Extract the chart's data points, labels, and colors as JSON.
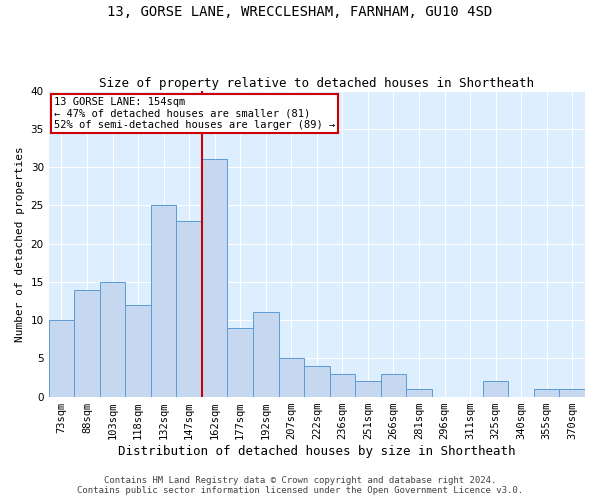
{
  "title_line1": "13, GORSE LANE, WRECCLESHAM, FARNHAM, GU10 4SD",
  "title_line2": "Size of property relative to detached houses in Shortheath",
  "xlabel": "Distribution of detached houses by size in Shortheath",
  "ylabel": "Number of detached properties",
  "categories": [
    "73sqm",
    "88sqm",
    "103sqm",
    "118sqm",
    "132sqm",
    "147sqm",
    "162sqm",
    "177sqm",
    "192sqm",
    "207sqm",
    "222sqm",
    "236sqm",
    "251sqm",
    "266sqm",
    "281sqm",
    "296sqm",
    "311sqm",
    "325sqm",
    "340sqm",
    "355sqm",
    "370sqm"
  ],
  "values": [
    10,
    14,
    15,
    12,
    25,
    23,
    31,
    9,
    11,
    5,
    4,
    3,
    2,
    3,
    1,
    0,
    0,
    2,
    0,
    1,
    1
  ],
  "bar_color": "#c5d8f0",
  "bar_edge_color": "#5b9bd5",
  "vertical_line_x": 5.5,
  "vline_color": "#cc0000",
  "annotation_text": "13 GORSE LANE: 154sqm\n← 47% of detached houses are smaller (81)\n52% of semi-detached houses are larger (89) →",
  "annotation_box_color": "#cc0000",
  "ylim": [
    0,
    40
  ],
  "yticks": [
    0,
    5,
    10,
    15,
    20,
    25,
    30,
    35,
    40
  ],
  "footer_line1": "Contains HM Land Registry data © Crown copyright and database right 2024.",
  "footer_line2": "Contains public sector information licensed under the Open Government Licence v3.0.",
  "bg_color": "#ddeeff",
  "title1_fontsize": 10,
  "title2_fontsize": 9,
  "xlabel_fontsize": 9,
  "ylabel_fontsize": 8,
  "footer_fontsize": 6.5,
  "tick_fontsize": 7.5,
  "annotation_fontsize": 7.5
}
